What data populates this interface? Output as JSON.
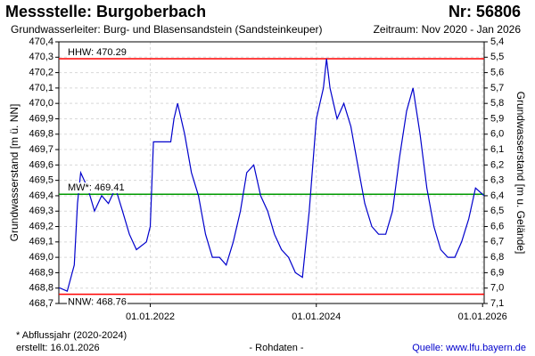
{
  "chart_data": {
    "type": "line",
    "title": "Messstelle: Burgoberbach",
    "number": "Nr: 56806",
    "subtitle": "Grundwasserleiter:  Burg- und Blasensandstein (Sandsteinkeuper)",
    "period": "Zeitraum: Nov 2020 - Jan 2026",
    "ylabel": "Grundwasserstand [m ü. NN]",
    "y2label": "Grundwasserstand [m u. Gelände]",
    "footnote": "* Abflussjahr (2020-2024)",
    "created": "erstellt:  16.01.2026",
    "rawdata": "- Rohdaten -",
    "source": "Quelle:  www.lfu.bayern.de",
    "color": "#0000cc",
    "grid": true,
    "x": [
      "2020-11-25",
      "2020-12-01",
      "2021-01-01",
      "2021-02-01",
      "2021-02-15",
      "2021-03-01",
      "2021-04-01",
      "2021-05-01",
      "2021-06-01",
      "2021-07-01",
      "2021-08-01",
      "2021-09-01",
      "2021-10-01",
      "2021-11-01",
      "2021-12-15",
      "2022-01-01",
      "2022-01-15",
      "2022-02-01",
      "2022-03-01",
      "2022-04-01",
      "2022-04-15",
      "2022-05-01",
      "2022-06-01",
      "2022-07-01",
      "2022-08-01",
      "2022-09-01",
      "2022-10-01",
      "2022-11-01",
      "2022-12-01",
      "2023-01-01",
      "2023-02-01",
      "2023-03-01",
      "2023-04-01",
      "2023-05-01",
      "2023-06-01",
      "2023-07-01",
      "2023-08-01",
      "2023-09-01",
      "2023-10-01",
      "2023-11-01",
      "2023-12-01",
      "2024-01-01",
      "2024-02-01",
      "2024-02-15",
      "2024-03-01",
      "2024-04-01",
      "2024-05-01",
      "2024-06-01",
      "2024-07-01",
      "2024-08-01",
      "2024-09-01",
      "2024-10-01",
      "2024-11-01",
      "2024-12-01",
      "2025-01-01",
      "2025-02-01",
      "2025-03-01",
      "2025-04-01",
      "2025-05-01",
      "2025-06-01",
      "2025-07-01",
      "2025-08-01",
      "2025-09-01",
      "2025-10-01",
      "2025-11-01",
      "2025-12-01",
      "2026-01-08"
    ],
    "values": [
      468.8,
      468.8,
      468.78,
      468.95,
      469.35,
      469.55,
      469.45,
      469.3,
      469.4,
      469.35,
      469.45,
      469.3,
      469.15,
      469.05,
      469.1,
      469.2,
      469.75,
      469.75,
      469.75,
      469.75,
      469.9,
      470.0,
      469.8,
      469.55,
      469.4,
      469.15,
      469.0,
      469.0,
      468.95,
      469.1,
      469.3,
      469.55,
      469.6,
      469.4,
      469.3,
      469.15,
      469.05,
      469.0,
      468.9,
      468.87,
      469.3,
      469.9,
      470.1,
      470.29,
      470.1,
      469.9,
      470.0,
      469.85,
      469.6,
      469.35,
      469.2,
      469.15,
      469.15,
      469.3,
      469.65,
      469.95,
      470.1,
      469.8,
      469.45,
      469.2,
      469.05,
      469.0,
      469.0,
      469.1,
      469.25,
      469.45,
      469.4
    ],
    "xlim": [
      "2020-11-25",
      "2026-01-08"
    ],
    "xticks": [
      {
        "value": "2022-01-01",
        "label": "01.01.2022"
      },
      {
        "value": "2024-01-01",
        "label": "01.01.2024"
      },
      {
        "value": "2026-01-01",
        "label": "01.01.2026"
      }
    ],
    "ylim": [
      468.7,
      470.4
    ],
    "yticks": [
      {
        "value": 468.7,
        "label": "468,7"
      },
      {
        "value": 468.8,
        "label": "468,8"
      },
      {
        "value": 468.9,
        "label": "468,9"
      },
      {
        "value": 469.0,
        "label": "469,0"
      },
      {
        "value": 469.1,
        "label": "469,1"
      },
      {
        "value": 469.2,
        "label": "469,2"
      },
      {
        "value": 469.3,
        "label": "469,3"
      },
      {
        "value": 469.4,
        "label": "469,4"
      },
      {
        "value": 469.5,
        "label": "469,5"
      },
      {
        "value": 469.6,
        "label": "469,6"
      },
      {
        "value": 469.7,
        "label": "469,7"
      },
      {
        "value": 469.8,
        "label": "469,8"
      },
      {
        "value": 469.9,
        "label": "469,9"
      },
      {
        "value": 470.0,
        "label": "470,0"
      },
      {
        "value": 470.1,
        "label": "470,1"
      },
      {
        "value": 470.2,
        "label": "470,2"
      },
      {
        "value": 470.3,
        "label": "470,3"
      },
      {
        "value": 470.4,
        "label": "470,4"
      }
    ],
    "y2lim": [
      7.1,
      5.4
    ],
    "y2ticks": [
      {
        "value": 5.4,
        "label": "5,4"
      },
      {
        "value": 5.5,
        "label": "5,5"
      },
      {
        "value": 5.6,
        "label": "5,6"
      },
      {
        "value": 5.7,
        "label": "5,7"
      },
      {
        "value": 5.8,
        "label": "5,8"
      },
      {
        "value": 5.9,
        "label": "5,9"
      },
      {
        "value": 6.0,
        "label": "6,0"
      },
      {
        "value": 6.1,
        "label": "6,1"
      },
      {
        "value": 6.2,
        "label": "6,2"
      },
      {
        "value": 6.3,
        "label": "6,3"
      },
      {
        "value": 6.4,
        "label": "6,4"
      },
      {
        "value": 6.5,
        "label": "6,5"
      },
      {
        "value": 6.6,
        "label": "6,6"
      },
      {
        "value": 6.7,
        "label": "6,7"
      },
      {
        "value": 6.8,
        "label": "6,8"
      },
      {
        "value": 6.9,
        "label": "6,9"
      },
      {
        "value": 7.0,
        "label": "7,0"
      },
      {
        "value": 7.1,
        "label": "7,1"
      }
    ],
    "reference_lines": [
      {
        "value": 470.29,
        "label": "HHW: 470.29",
        "color": "#ff0000"
      },
      {
        "value": 469.41,
        "label": "MW*: 469.41",
        "color": "#009900"
      },
      {
        "value": 468.76,
        "label": "NNW: 468.76",
        "color": "#ff0000"
      }
    ]
  }
}
